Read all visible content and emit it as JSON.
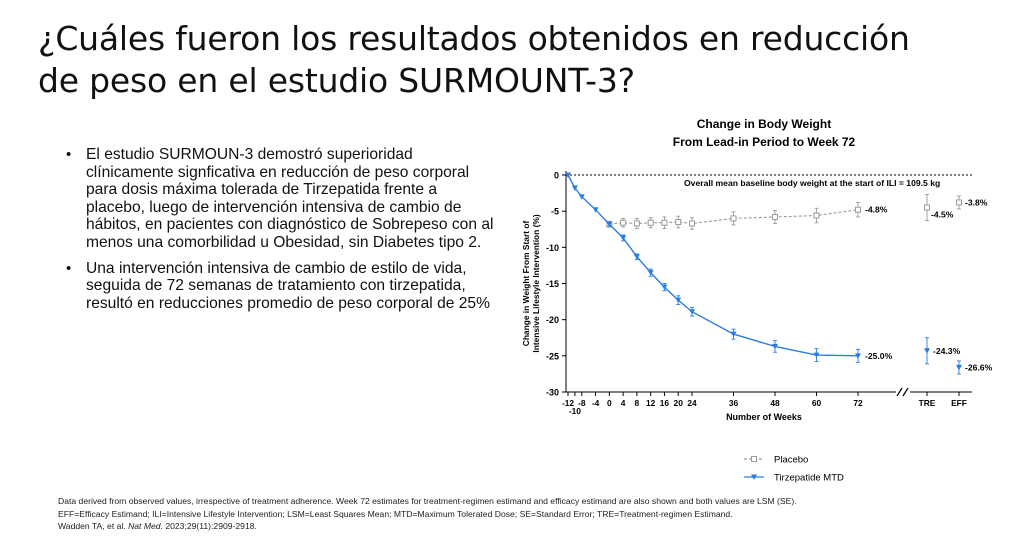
{
  "title": "¿Cuáles fueron los resultados obtenidos en reducción de peso en el estudio SURMOUNT-3?",
  "bullets": [
    "El estudio SURMOUN-3 demostró superioridad clínicamente signficativa en reducción de peso corporal para dosis máxima tolerada de Tirzepatida frente a placebo, luego de intervención intensiva de cambio de hábitos, en pacientes con diagnóstico de Sobrepeso con al menos una comorbilidad u Obesidad, sin Diabetes tipo 2.",
    "Una intervención intensiva de cambio de estilo de vida, seguida de 72 semanas de tratamiento con tirzepatida, resultó en reducciones promedio de peso corporal de 25%"
  ],
  "footnote": {
    "line1": "Data derived from observed values, irrespective of treatment adherence. Week 72 estimates for treatment-regimen estimand and efficacy estimand are also shown and both values are LSM (SE).",
    "line2": "EFF=Efficacy Estimand; ILI=Intensive Lifestyle Intervention; LSM=Least Squares Mean; MTD=Maximum Tolerated Dose; SE=Standard Error; TRE=Treatment-regimen Estimand.",
    "line3_prefix": "Wadden TA, et al. ",
    "line3_journal": "Nat Med",
    "line3_suffix": ". 2023;29(11):2909-2918."
  },
  "chart_data": {
    "type": "line",
    "title_line1": "Change in Body Weight",
    "title_line2": "From Lead-in Period to Week 72",
    "ylabel_line1": "Change in Weight From Start of",
    "ylabel_line2": "Intensive Lifestyle Intervention (%)",
    "xlabel": "Number of Weeks",
    "ylim": [
      -30,
      0
    ],
    "yticks": [
      0,
      -5,
      -10,
      -15,
      -20,
      -25,
      -30
    ],
    "xticks": [
      "-12",
      "-8",
      "-4",
      "0",
      "4",
      "8",
      "12",
      "16",
      "20",
      "24",
      "36",
      "48",
      "60",
      "72"
    ],
    "x_minor_label": "-10",
    "annotation": "Overall mean baseline body weight at the start of ILI = 109.5 kg",
    "series": [
      {
        "name": "Placebo",
        "color": "#9a9a9a",
        "style": "dashed",
        "marker": "open-square",
        "x": [
          -12,
          -10,
          -8,
          -4,
          0,
          4,
          8,
          12,
          16,
          20,
          24,
          36,
          48,
          60,
          72
        ],
        "values": [
          0,
          -1.8,
          -3.0,
          -4.8,
          -6.8,
          -6.6,
          -6.7,
          -6.6,
          -6.6,
          -6.5,
          -6.7,
          -6.0,
          -5.8,
          -5.6,
          -4.8
        ],
        "err": [
          0,
          0,
          0,
          0,
          0.4,
          0.6,
          0.7,
          0.7,
          0.8,
          0.8,
          0.8,
          0.9,
          0.9,
          1.0,
          1.0
        ],
        "end_label": "-4.8%"
      },
      {
        "name": "Tirzepatide MTD",
        "color": "#2a7de1",
        "style": "solid",
        "marker": "filled-triangle",
        "x": [
          -12,
          -10,
          -8,
          -4,
          0,
          4,
          8,
          12,
          16,
          20,
          24,
          36,
          48,
          60,
          72
        ],
        "values": [
          0,
          -1.8,
          -3.0,
          -4.8,
          -6.8,
          -8.7,
          -11.3,
          -13.5,
          -15.5,
          -17.3,
          -18.9,
          -22.0,
          -23.7,
          -24.9,
          -25.0
        ],
        "err": [
          0,
          0,
          0,
          0,
          0.3,
          0.4,
          0.4,
          0.5,
          0.5,
          0.6,
          0.6,
          0.7,
          0.8,
          0.9,
          0.9
        ],
        "end_label": "-25.0%"
      }
    ],
    "estimands": [
      {
        "category": "TRE",
        "series": "Placebo",
        "value": -4.5,
        "err": 1.8,
        "label": "-4.5%"
      },
      {
        "category": "TRE",
        "series": "Tirzepatide MTD",
        "value": -24.3,
        "err": 1.8,
        "label": "-24.3%"
      },
      {
        "category": "EFF",
        "series": "Placebo",
        "value": -3.8,
        "err": 0.9,
        "label": "-3.8%"
      },
      {
        "category": "EFF",
        "series": "Tirzepatide MTD",
        "value": -26.6,
        "err": 0.9,
        "label": "-26.6%"
      }
    ],
    "legend_position": "bottom",
    "legend": [
      "Placebo",
      "Tirzepatide MTD"
    ]
  }
}
